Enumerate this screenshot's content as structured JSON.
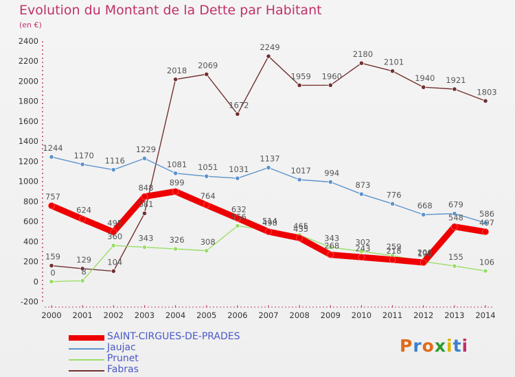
{
  "header": {
    "title": "Evolution du Montant de la Dette par Habitant",
    "subtitle": "(en €)"
  },
  "logo": {
    "text": "Proxiti"
  },
  "chart_data": {
    "type": "line",
    "title": "Evolution du Montant de la Dette par Habitant",
    "subtitle": "(en €)",
    "x": [
      2000,
      2001,
      2002,
      2003,
      2004,
      2005,
      2006,
      2007,
      2008,
      2009,
      2010,
      2011,
      2012,
      2013,
      2014
    ],
    "ylim": [
      -200,
      2400
    ],
    "yticks": [
      -200,
      0,
      200,
      400,
      600,
      800,
      1000,
      1200,
      1400,
      1600,
      1800,
      2000,
      2200,
      2400
    ],
    "grid": false,
    "legend_position": "bottom-left",
    "series": [
      {
        "name": "Fabras",
        "color": "#722f2f",
        "values": [
          159,
          129,
          104,
          681,
          2018,
          2069,
          1672,
          2249,
          1959,
          1960,
          2180,
          2101,
          1940,
          1921,
          1803
        ],
        "labels": [
          "159",
          "129",
          "104",
          "681",
          "2018",
          "2069",
          "1672",
          "2249",
          "1959",
          "1960",
          "2180",
          "2101",
          "1940",
          "1921",
          "1803"
        ]
      },
      {
        "name": "Jaujac",
        "color": "#5b93cc",
        "values": [
          1244,
          1170,
          1116,
          1229,
          1081,
          1051,
          1031,
          1137,
          1017,
          994,
          873,
          776,
          668,
          679,
          586
        ],
        "labels": [
          "1244",
          "1170",
          "1116",
          "1229",
          "1081",
          "1051",
          "1031",
          "1137",
          "1017",
          "994",
          "873",
          "776",
          "668",
          "679",
          "586"
        ]
      },
      {
        "name": "Prunet",
        "color": "#99dd66",
        "values": [
          0,
          8,
          360,
          343,
          326,
          308,
          556,
          514,
          465,
          343,
          302,
          259,
          200,
          155,
          106
        ],
        "labels": [
          "0",
          "8",
          "360",
          "343",
          "326",
          "308",
          "556",
          "514",
          "465",
          "343",
          "302",
          "259",
          "200",
          "155",
          "106"
        ]
      },
      {
        "name": "SAINT-CIRGUES-DE-PRADES",
        "color": "#ee0000",
        "values": [
          757,
          624,
          495,
          848,
          899,
          764,
          632,
          498,
          435,
          268,
          243,
          218,
          190,
          548,
          497
        ],
        "labels": [
          "757",
          "624",
          "495",
          "848",
          "899",
          "764",
          "632",
          "498",
          "435",
          "268",
          "243",
          "218",
          "190",
          "548",
          "497"
        ]
      }
    ],
    "legend": [
      {
        "name": "SAINT-CIRGUES-DE-PRADES",
        "color": "#ee0000"
      },
      {
        "name": "Jaujac",
        "color": "#5b93cc"
      },
      {
        "name": "Prunet",
        "color": "#99dd66"
      },
      {
        "name": "Fabras",
        "color": "#722f2f"
      }
    ]
  }
}
